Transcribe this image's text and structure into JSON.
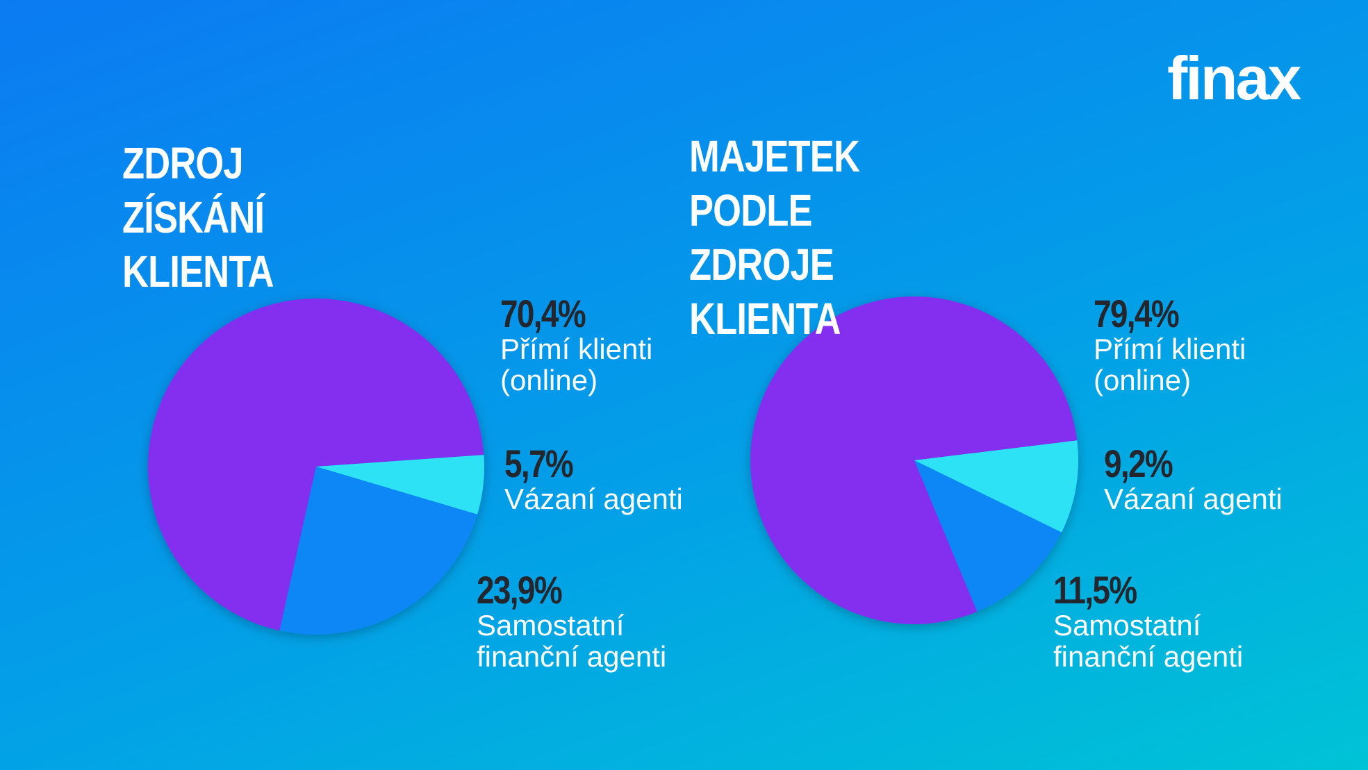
{
  "logo": "finax",
  "chart_data": [
    {
      "type": "pie",
      "title": "ZDROJ ZÍSKÁNÍ KLIENTA",
      "categories": [
        "Přímí klienti (online)",
        "Vázaní agenti",
        "Samostatní finanční agenti"
      ],
      "values": [
        70.4,
        5.7,
        23.9
      ],
      "value_labels": [
        "70,4%",
        "5,7%",
        "23,9%"
      ],
      "colors": [
        "#842ef0",
        "#2ee2f6",
        "#0887f5"
      ]
    },
    {
      "type": "pie",
      "title": "MAJETEK PODLE ZDROJE KLIENTA",
      "categories": [
        "Přímí klienti (online)",
        "Vázaní agenti",
        "Samostatní finanční agenti"
      ],
      "values": [
        79.4,
        9.2,
        11.5
      ],
      "value_labels": [
        "79,4%",
        "9,2%",
        "11,5%"
      ],
      "colors": [
        "#842ef0",
        "#2ee2f6",
        "#0887f5"
      ]
    }
  ]
}
